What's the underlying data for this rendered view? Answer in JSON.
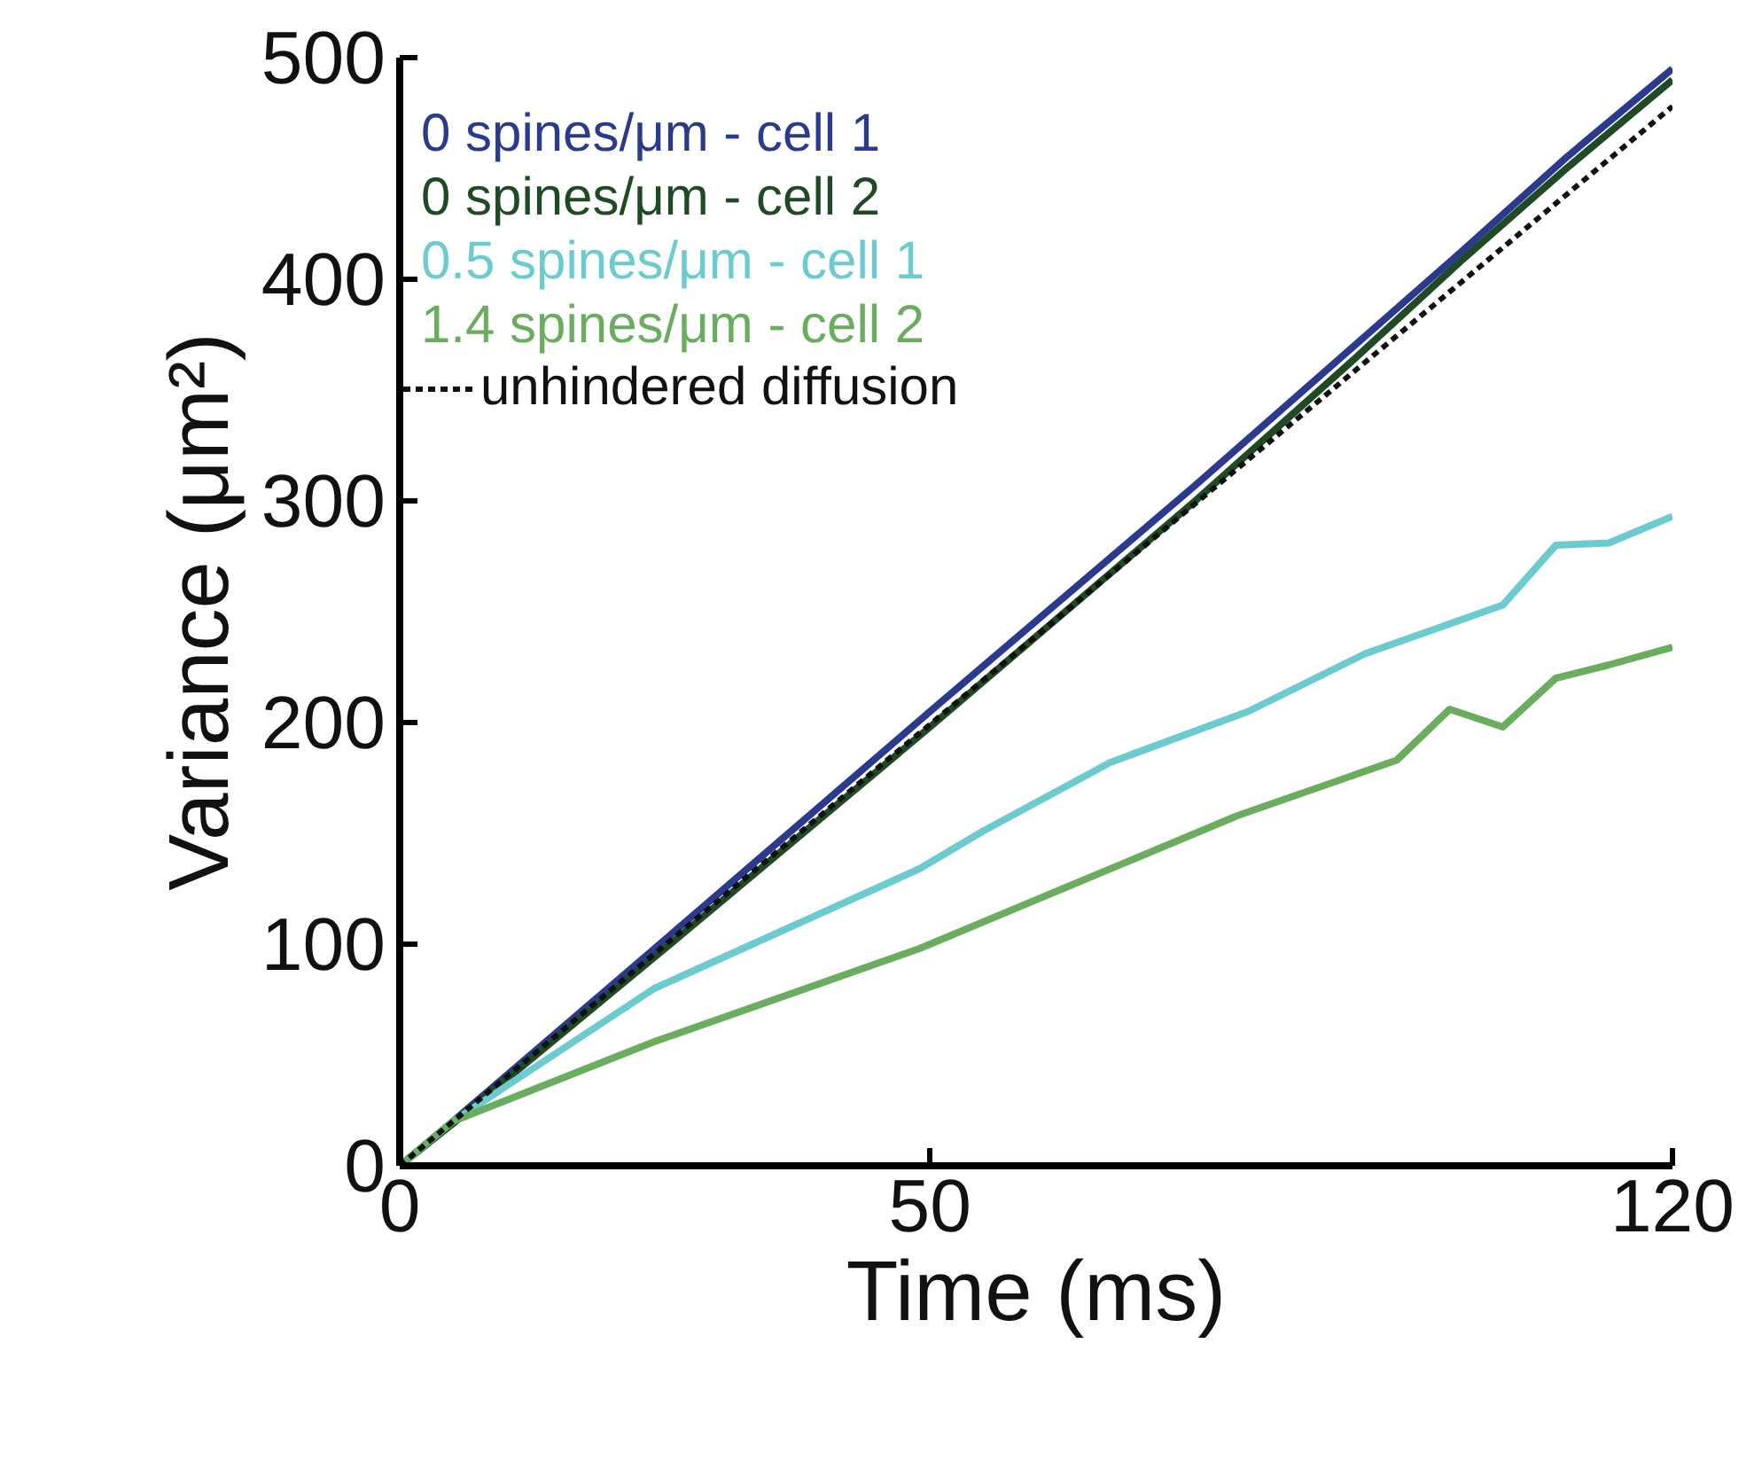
{
  "chart_data": {
    "type": "line",
    "xlabel": "Time (ms)",
    "ylabel": "Variance (μm²)",
    "xlim": [
      0,
      120
    ],
    "ylim": [
      0,
      500
    ],
    "xticks": [
      0,
      50,
      120
    ],
    "yticks": [
      0,
      100,
      200,
      300,
      400,
      500
    ],
    "grid": false,
    "legend": "top left",
    "series": [
      {
        "name": "0 spines/μm - cell 1",
        "color": "#2b3a8c",
        "x": [
          0,
          5,
          25,
          50,
          75,
          90,
          100,
          110,
          120
        ],
        "values": [
          0,
          20,
          102,
          205,
          307,
          370,
          412,
          455,
          495
        ]
      },
      {
        "name": "0 spines/μm - cell 2",
        "color": "#1f4a24",
        "x": [
          0,
          5,
          25,
          50,
          75,
          90,
          100,
          110,
          120
        ],
        "values": [
          0,
          19,
          98,
          198,
          300,
          364,
          408,
          450,
          490
        ]
      },
      {
        "name": "0.5 spines/μm - cell 1",
        "color": "#6ccbcf",
        "x": [
          0,
          5,
          24,
          49,
          55,
          67,
          80,
          91,
          104,
          109,
          114,
          120
        ],
        "values": [
          0,
          20,
          80,
          134,
          151,
          182,
          205,
          231,
          253,
          280,
          281,
          293
        ]
      },
      {
        "name": "1.4 spines/μm - cell 2",
        "color": "#6aad5e",
        "x": [
          0,
          5,
          24,
          49,
          63,
          79,
          94,
          99,
          104,
          109,
          114,
          120
        ],
        "values": [
          0,
          20,
          56,
          98,
          126,
          158,
          183,
          206,
          198,
          220,
          226,
          234
        ]
      },
      {
        "name": "unhindered diffusion",
        "color": "#111111",
        "line_style": "dashed",
        "x": [
          0,
          120
        ],
        "values": [
          0,
          478
        ]
      }
    ]
  }
}
